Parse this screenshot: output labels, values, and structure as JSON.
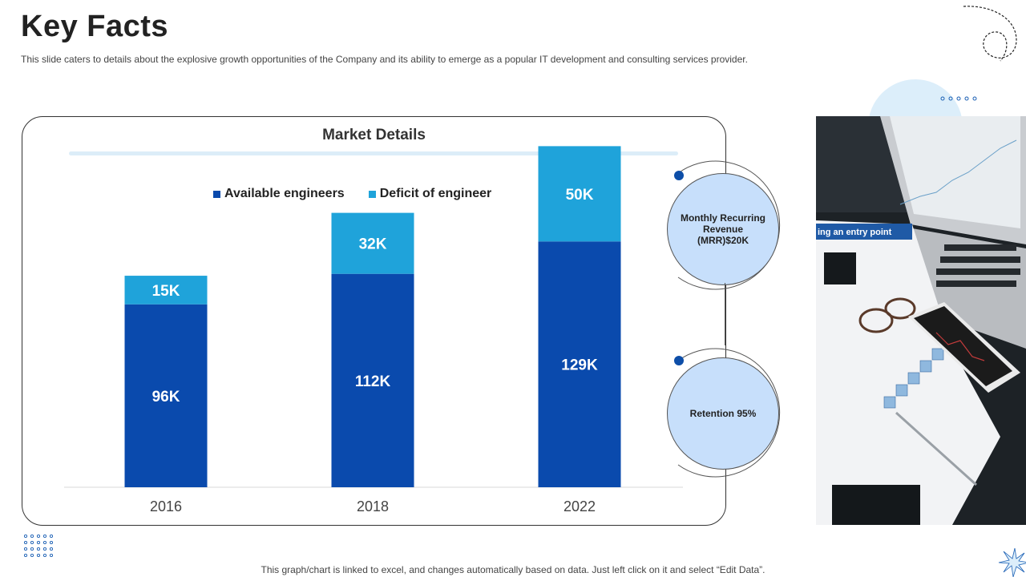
{
  "header": {
    "title": "Key Facts",
    "subtitle": "This slide caters to details about the explosive growth opportunities of the Company and its ability to emerge as a popular IT  development and consulting services provider."
  },
  "panel": {
    "title": "Market Details"
  },
  "chart_data": {
    "type": "bar",
    "stacked": true,
    "title": "Market Details",
    "categories": [
      "2016",
      "2018",
      "2022"
    ],
    "series": [
      {
        "name": "Available engineers",
        "values": [
          96,
          112,
          129
        ],
        "labels": [
          "96K",
          "112K",
          "129K"
        ],
        "color": "#0a4aad"
      },
      {
        "name": "Deficit of engineer",
        "values": [
          15,
          32,
          50
        ],
        "labels": [
          "15K",
          "32K",
          "50K"
        ],
        "color": "#1fa3da"
      }
    ],
    "ylim": [
      0,
      180
    ],
    "unit": "K",
    "legend_position": "top",
    "grid": false
  },
  "kpis": [
    {
      "label": "Monthly Recurring Revenue (MRR)$20K"
    },
    {
      "label": "Retention 95%"
    }
  ],
  "footnote": "This graph/chart is linked to excel,  and changes automatically based on data. Just left click on it and select “Edit Data”.",
  "colors": {
    "accent_dark": "#0a4aad",
    "accent_light": "#1fa3da",
    "kpi_fill": "#c7dffb",
    "rule": "#dcedf8"
  }
}
